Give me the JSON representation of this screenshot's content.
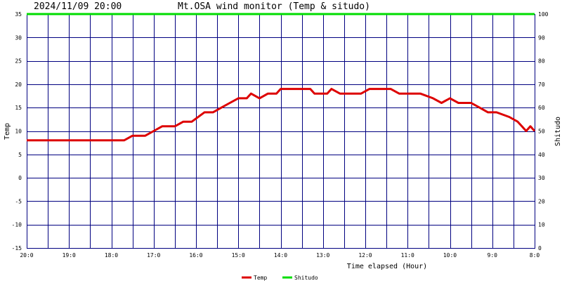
{
  "header": {
    "timestamp": "2024/11/09 20:00",
    "title": "Mt.OSA wind monitor (Temp & situdo)"
  },
  "chart_data": {
    "type": "line",
    "xlabel": "Time elapsed (Hour)",
    "ylabel_left": "Temp",
    "ylabel_right": "Shitudo",
    "ylim_left": [
      -15,
      35
    ],
    "ylim_right": [
      0,
      100
    ],
    "yticks_left": [
      "35",
      "30",
      "25",
      "20",
      "15",
      "10",
      "5",
      "0",
      "-5",
      "-10",
      "-15"
    ],
    "yticks_right": [
      "100",
      "90",
      "80",
      "70",
      "60",
      "50",
      "40",
      "30",
      "20",
      "10",
      "0"
    ],
    "xlim": [
      20,
      8
    ],
    "xticks": [
      {
        "v": 20,
        "label": "20:0"
      },
      {
        "v": 19,
        "label": "19:0"
      },
      {
        "v": 18,
        "label": "18:0"
      },
      {
        "v": 17,
        "label": "17:0"
      },
      {
        "v": 16,
        "label": "16:0"
      },
      {
        "v": 15,
        "label": "15:0"
      },
      {
        "v": 14,
        "label": "14:0"
      },
      {
        "v": 13,
        "label": "13:0"
      },
      {
        "v": 12,
        "label": "12:0"
      },
      {
        "v": 11,
        "label": "11:0"
      },
      {
        "v": 10,
        "label": "10:0"
      },
      {
        "v": 9,
        "label": "9:0"
      },
      {
        "v": 8,
        "label": "8:0"
      }
    ],
    "grid": true,
    "legend_position": "bottom-center",
    "series": [
      {
        "name": "Temp",
        "axis": "left",
        "color": "#dd0000",
        "points": [
          [
            20.0,
            8
          ],
          [
            19.0,
            8
          ],
          [
            18.0,
            8
          ],
          [
            17.7,
            8
          ],
          [
            17.5,
            9
          ],
          [
            17.2,
            9
          ],
          [
            17.0,
            10
          ],
          [
            16.8,
            11
          ],
          [
            16.5,
            11
          ],
          [
            16.3,
            12
          ],
          [
            16.1,
            12
          ],
          [
            15.8,
            14
          ],
          [
            15.6,
            14
          ],
          [
            15.4,
            15
          ],
          [
            15.2,
            16
          ],
          [
            15.0,
            17
          ],
          [
            14.8,
            17
          ],
          [
            14.7,
            18
          ],
          [
            14.5,
            17
          ],
          [
            14.3,
            18
          ],
          [
            14.1,
            18
          ],
          [
            14.0,
            19
          ],
          [
            13.3,
            19
          ],
          [
            13.2,
            18
          ],
          [
            12.9,
            18
          ],
          [
            12.8,
            19
          ],
          [
            12.6,
            18
          ],
          [
            12.1,
            18
          ],
          [
            11.9,
            19
          ],
          [
            11.4,
            19
          ],
          [
            11.2,
            18
          ],
          [
            10.7,
            18
          ],
          [
            10.4,
            17
          ],
          [
            10.2,
            16
          ],
          [
            10.0,
            17
          ],
          [
            9.8,
            16
          ],
          [
            9.5,
            16
          ],
          [
            9.3,
            15
          ],
          [
            9.1,
            14
          ],
          [
            8.9,
            14
          ],
          [
            8.6,
            13
          ],
          [
            8.4,
            12
          ],
          [
            8.3,
            11
          ],
          [
            8.2,
            10
          ],
          [
            8.1,
            11
          ],
          [
            8.0,
            10
          ]
        ]
      },
      {
        "name": "Shitudo",
        "axis": "right",
        "color": "#00dd00",
        "points": [
          [
            20.0,
            100
          ],
          [
            8.0,
            100
          ]
        ]
      }
    ]
  },
  "legend": {
    "items": [
      {
        "name": "Temp",
        "color": "#dd0000"
      },
      {
        "name": "Shitudo",
        "color": "#00dd00"
      }
    ]
  }
}
